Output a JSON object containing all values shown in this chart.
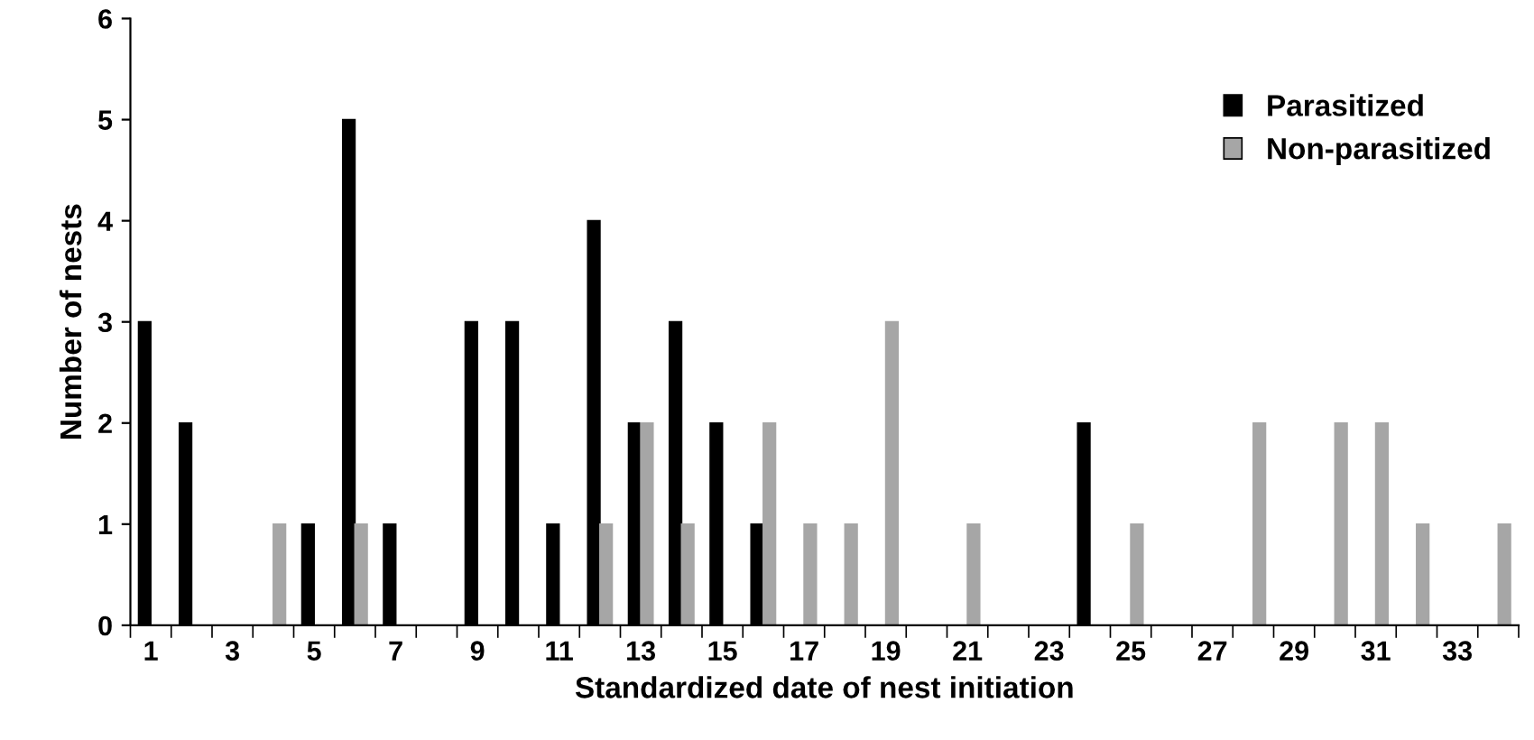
{
  "chart_data": {
    "type": "bar",
    "xlabel": "Standardized date of nest initiation",
    "ylabel": "Number of nests",
    "categories": [
      "1",
      null,
      "3",
      null,
      "5",
      null,
      "7",
      null,
      "9",
      null,
      "11",
      null,
      "13",
      null,
      "15",
      null,
      "17",
      null,
      "19",
      null,
      "21",
      null,
      "23",
      null,
      "25",
      null,
      "27",
      null,
      "29",
      null,
      "31",
      null,
      "33",
      null
    ],
    "series": [
      {
        "name": "Parasitized",
        "color": "#000000",
        "values": [
          3,
          2,
          0,
          0,
          1,
          5,
          1,
          0,
          3,
          3,
          1,
          4,
          2,
          3,
          2,
          1,
          0,
          0,
          0,
          0,
          0,
          0,
          0,
          2,
          0,
          0,
          0,
          0,
          0,
          0,
          0,
          0,
          0,
          0
        ]
      },
      {
        "name": "Non-parasitized",
        "color": "#a6a6a6",
        "values": [
          0,
          0,
          0,
          1,
          0,
          1,
          0,
          0,
          0,
          0,
          0,
          1,
          2,
          1,
          0,
          2,
          1,
          1,
          3,
          0,
          1,
          0,
          0,
          0,
          1,
          0,
          0,
          2,
          0,
          2,
          2,
          1,
          0,
          1
        ]
      }
    ],
    "ylim": [
      0,
      6
    ],
    "yticks": [
      0,
      1,
      2,
      3,
      4,
      5,
      6
    ],
    "grid": false,
    "legend": "top right"
  }
}
